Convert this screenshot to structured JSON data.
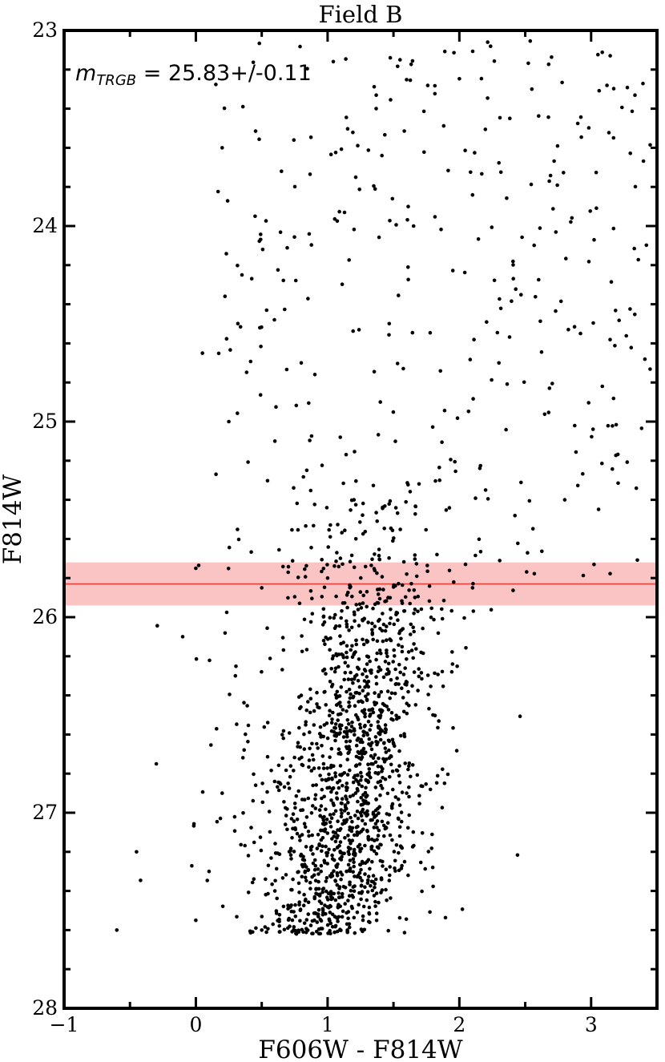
{
  "chart_data": {
    "type": "scatter",
    "title": "Field B",
    "xlabel": "F606W - F814W",
    "ylabel": "F814W",
    "xlim": [
      -1,
      3.5
    ],
    "ylim": [
      28,
      23
    ],
    "y_inverted": true,
    "x_ticks": [
      -1,
      0,
      1,
      2,
      3
    ],
    "x_tick_labels": [
      "−1",
      "0",
      "1",
      "2",
      "3"
    ],
    "y_ticks": [
      23,
      24,
      25,
      26,
      27,
      28
    ],
    "y_tick_labels": [
      "23",
      "24",
      "25",
      "26",
      "27",
      "28"
    ],
    "grid": false,
    "annotation": {
      "symbol": "m",
      "subscript": "TRGB",
      "text": " = 25.83+/-0.11",
      "position": "top-left"
    },
    "trgb": {
      "value": 25.83,
      "error": 0.11,
      "line_color": "#e8403a",
      "band_color": "#f7a5a5"
    },
    "marker_color": "#000000",
    "sample_points": [
      [
        0.2,
        23.6
      ],
      [
        0.45,
        23.95
      ],
      [
        0.65,
        23.72
      ],
      [
        1.55,
        23.15
      ],
      [
        2.55,
        23.3
      ],
      [
        0.05,
        24.65
      ],
      [
        0.35,
        24.25
      ],
      [
        0.8,
        24.7
      ],
      [
        1.4,
        24.9
      ],
      [
        2.3,
        24.7
      ],
      [
        0.25,
        25.0
      ],
      [
        0.6,
        25.1
      ],
      [
        1.2,
        25.4
      ],
      [
        1.85,
        25.3
      ],
      [
        2.8,
        25.4
      ],
      [
        0.0,
        25.75
      ],
      [
        0.5,
        25.85
      ],
      [
        1.0,
        25.8
      ],
      [
        1.6,
        25.78
      ],
      [
        2.1,
        25.85
      ],
      [
        -0.1,
        26.1
      ],
      [
        0.3,
        26.3
      ],
      [
        0.8,
        26.4
      ],
      [
        1.3,
        26.2
      ],
      [
        1.8,
        26.5
      ],
      [
        -0.3,
        26.75
      ],
      [
        0.2,
        26.9
      ],
      [
        0.7,
        26.85
      ],
      [
        1.1,
        26.7
      ],
      [
        1.6,
        26.9
      ],
      [
        -0.45,
        27.2
      ],
      [
        0.1,
        27.3
      ],
      [
        0.6,
        27.4
      ],
      [
        0.95,
        27.3
      ],
      [
        1.3,
        27.25
      ],
      [
        -0.6,
        27.6
      ],
      [
        0.0,
        27.55
      ],
      [
        0.5,
        27.6
      ],
      [
        0.9,
        27.55
      ],
      [
        1.15,
        27.6
      ]
    ]
  }
}
